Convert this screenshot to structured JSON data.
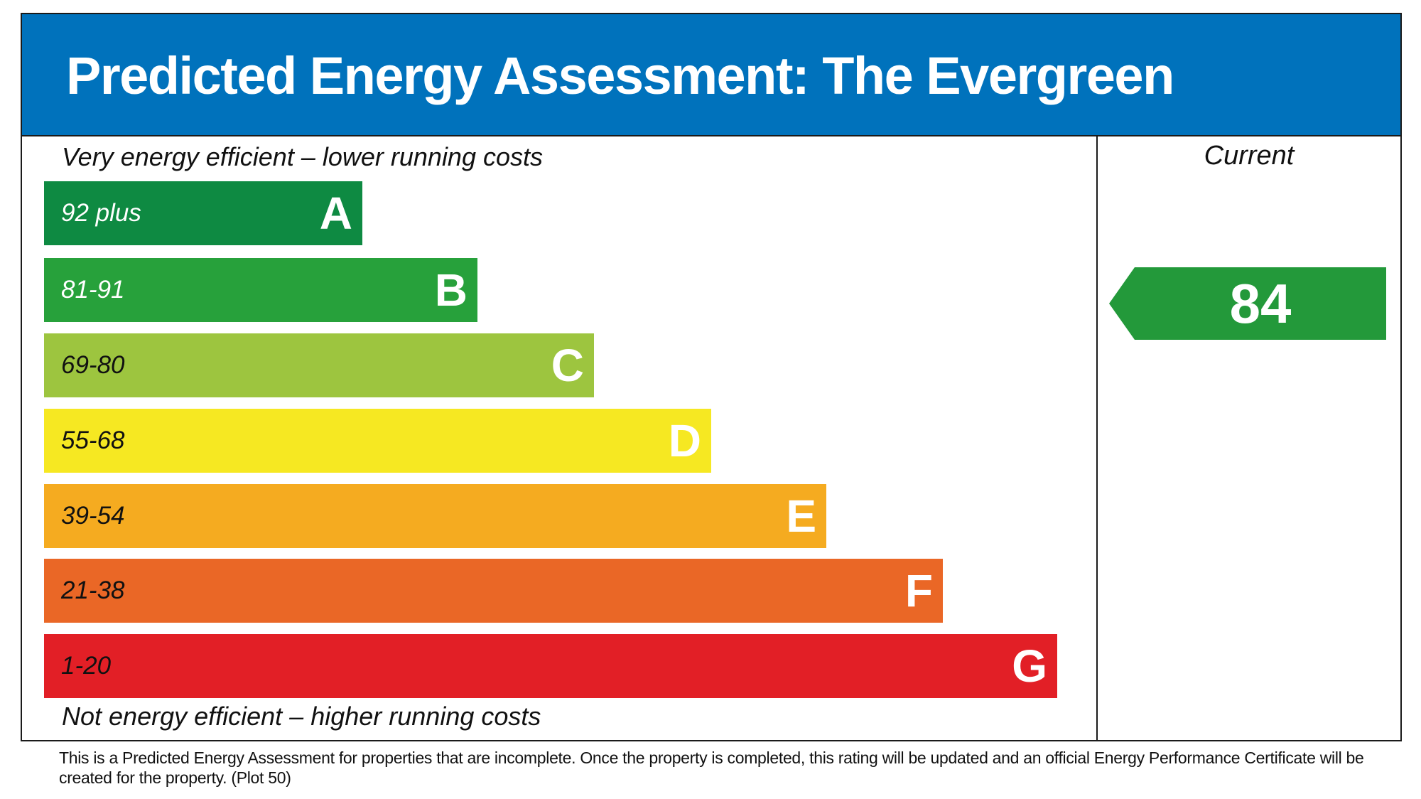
{
  "title": "Predicted Energy Assessment: The Evergreen",
  "top_caption": "Very energy efficient – lower running costs",
  "bottom_caption": "Not energy efficient – higher running costs",
  "current_label": "Current",
  "current_rating": {
    "value": "84",
    "band": "B",
    "color": "#23993a"
  },
  "bands": [
    {
      "letter": "A",
      "range": "92 plus",
      "color": "#0e8a42",
      "text_color": "#ffffff"
    },
    {
      "letter": "B",
      "range": "81-91",
      "color": "#27a13b",
      "text_color": "#ffffff"
    },
    {
      "letter": "C",
      "range": "69-80",
      "color": "#9dc53f",
      "text_color": "#111111"
    },
    {
      "letter": "D",
      "range": "55-68",
      "color": "#f6e822",
      "text_color": "#111111"
    },
    {
      "letter": "E",
      "range": "39-54",
      "color": "#f5ab20",
      "text_color": "#111111"
    },
    {
      "letter": "F",
      "range": "21-38",
      "color": "#ea6726",
      "text_color": "#111111"
    },
    {
      "letter": "G",
      "range": "1-20",
      "color": "#e21f26",
      "text_color": "#111111"
    }
  ],
  "header_color": "#0072bc",
  "footer": "This is a Predicted Energy Assessment for properties that are incomplete. Once the property is completed, this rating will be updated and an official Energy Performance Certificate will be created for the property. (Plot 50)"
}
